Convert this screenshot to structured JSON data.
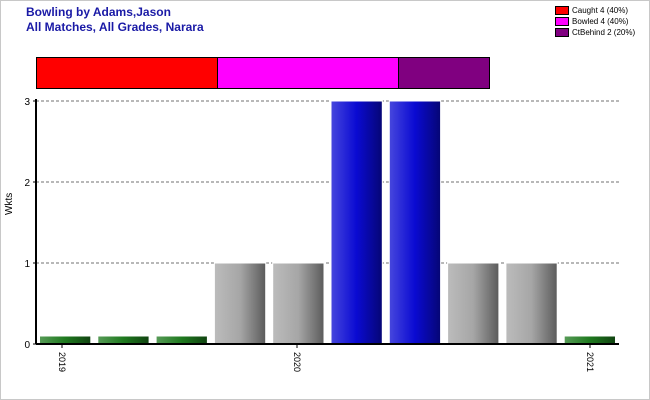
{
  "chart_data": {
    "type": "bar",
    "title": "Bowling by Adams,Jason",
    "subtitle": "All Matches, All Grades, Narara",
    "xlabel": "",
    "ylabel": "Wkts",
    "ylim": [
      0,
      3
    ],
    "yticks": [
      "0",
      "1",
      "2",
      "3"
    ],
    "xticks": [
      "2019",
      "2020",
      "2021"
    ],
    "grid": true,
    "legend_position": "top-right",
    "values": [
      0,
      0,
      0,
      1,
      1,
      3,
      3,
      1,
      1,
      0
    ],
    "bar_colors": [
      "#1f7a1f",
      "#1f7a1f",
      "#1f7a1f",
      "#a6a6a6",
      "#a6a6a6",
      "#0a0ad2",
      "#0a0ad2",
      "#a6a6a6",
      "#a6a6a6",
      "#1f7a1f"
    ],
    "legend": [
      {
        "label": "Caught 4 (40%)",
        "color": "#ff0000",
        "share": 40
      },
      {
        "label": "Bowled 4 (40%)",
        "color": "#ff00ff",
        "share": 40
      },
      {
        "label": "CtBehind 2 (20%)",
        "color": "#800080",
        "share": 20
      }
    ]
  }
}
